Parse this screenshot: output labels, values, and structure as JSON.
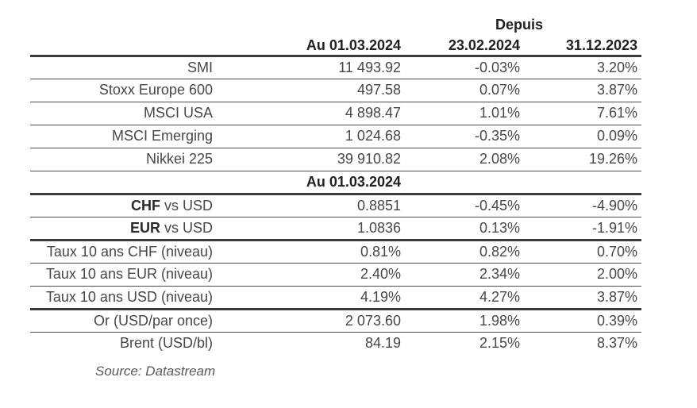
{
  "colors": {
    "thick_line": "#3a3a3a",
    "thin_line": "#4d4d4d",
    "header_text": "#212121",
    "body_text": "#474747",
    "source_text": "#595959",
    "background": "#ffffff"
  },
  "header": {
    "depuis_label": "Depuis",
    "columns": {
      "value": "Au 01.03.2024",
      "since1": "23.02.2024",
      "since2": "31.12.2023"
    }
  },
  "sections": {
    "indices": {
      "rows": [
        {
          "label": "SMI",
          "value": "11 493.92",
          "since1": "-0.03%",
          "since2": "3.20%"
        },
        {
          "label": "Stoxx Europe 600",
          "value": "497.58",
          "since1": "0.07%",
          "since2": "3.87%"
        },
        {
          "label": "MSCI USA",
          "value": "4 898.47",
          "since1": "1.01%",
          "since2": "7.61%"
        },
        {
          "label": "MSCI Emerging",
          "value": "1 024.68",
          "since1": "-0.35%",
          "since2": "0.09%"
        },
        {
          "label": "Nikkei 225",
          "value": "39 910.82",
          "since1": "2.08%",
          "since2": "19.26%"
        }
      ]
    },
    "divider_header": "Au 01.03.2024",
    "fx": {
      "rows": [
        {
          "label_bold": "CHF",
          "label_rest": " vs USD",
          "value": "0.8851",
          "since1": "-0.45%",
          "since2": "-4.90%"
        },
        {
          "label_bold": "EUR",
          "label_rest": " vs USD",
          "value": "1.0836",
          "since1": "0.13%",
          "since2": "-1.91%"
        }
      ]
    },
    "rates": {
      "rows": [
        {
          "label": "Taux 10 ans CHF (niveau)",
          "value": "0.81%",
          "since1": "0.82%",
          "since2": "0.70%"
        },
        {
          "label": "Taux 10 ans EUR (niveau)",
          "value": "2.40%",
          "since1": "2.34%",
          "since2": "2.00%"
        },
        {
          "label": "Taux 10 ans USD (niveau)",
          "value": "4.19%",
          "since1": "4.27%",
          "since2": "3.87%"
        }
      ]
    },
    "commodities": {
      "rows": [
        {
          "label": "Or (USD/par once)",
          "value": "2 073.60",
          "since1": "1.98%",
          "since2": "0.39%"
        },
        {
          "label": "Brent (USD/bl)",
          "value": "84.19",
          "since1": "2.15%",
          "since2": "8.37%"
        }
      ]
    }
  },
  "footer": {
    "source": "Source: Datastream"
  }
}
